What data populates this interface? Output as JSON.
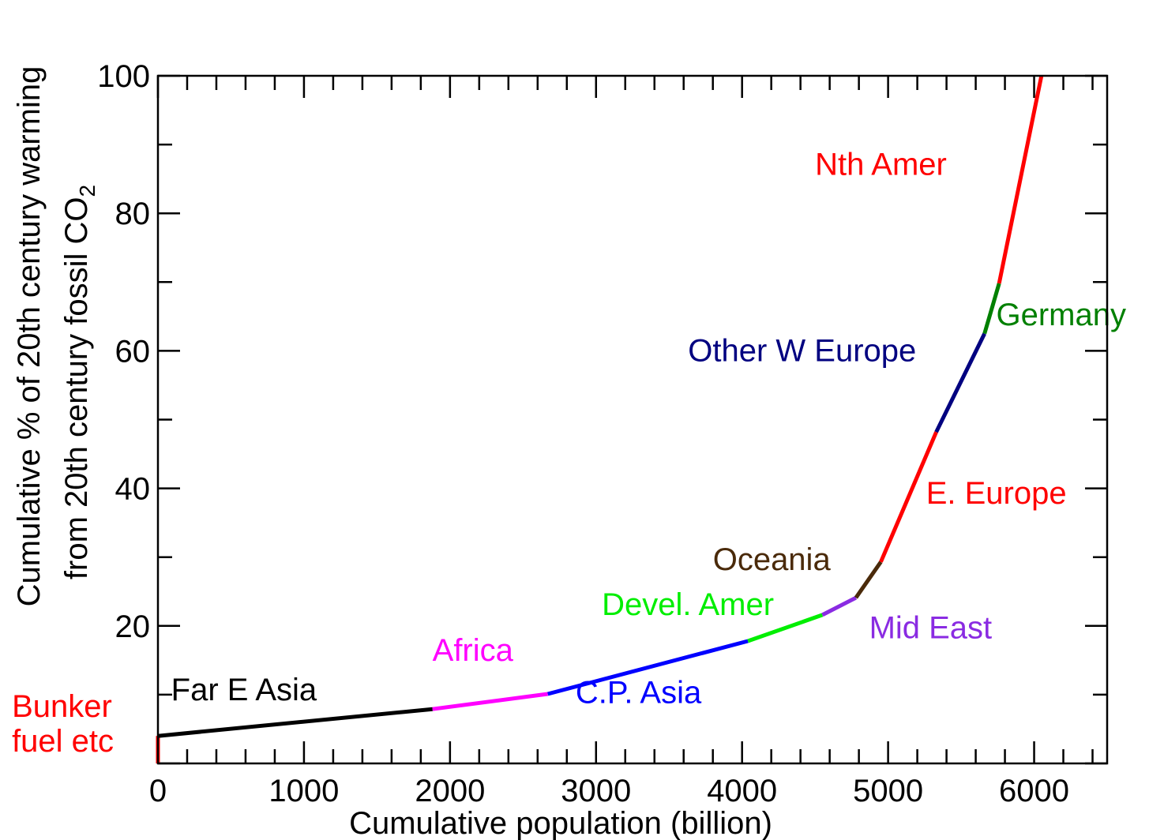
{
  "chart_data": {
    "type": "line",
    "xlabel": "Cumulative population (billion)",
    "ylabel_line1": "Cumulative % of 20th century warming",
    "ylabel_line2_main": "from 20th century fossil CO",
    "ylabel_line2_sub": "2",
    "xlim": [
      0,
      6500
    ],
    "ylim": [
      0,
      100
    ],
    "x_ticks": [
      0,
      1000,
      2000,
      3000,
      4000,
      5000,
      6000
    ],
    "y_ticks": [
      20,
      40,
      60,
      80,
      100
    ],
    "x_tick_labels": [
      "0",
      "1000",
      "2000",
      "3000",
      "4000",
      "5000",
      "6000"
    ],
    "y_tick_labels": [
      "20",
      "40",
      "60",
      "80",
      "100"
    ],
    "x_minor_step": 200,
    "y_minor_step": 10,
    "series": [
      {
        "key": "bunker",
        "color": "#ff0000",
        "points": [
          [
            0,
            0
          ],
          [
            0,
            4
          ]
        ]
      },
      {
        "key": "far-e-asia",
        "color": "#000000",
        "points": [
          [
            0,
            4
          ],
          [
            1880,
            7.9
          ]
        ]
      },
      {
        "key": "africa",
        "color": "#ff00ff",
        "points": [
          [
            1880,
            7.9
          ],
          [
            2670,
            10.1
          ]
        ]
      },
      {
        "key": "cp-asia",
        "color": "#0000ff",
        "points": [
          [
            2670,
            10.1
          ],
          [
            4040,
            17.8
          ]
        ]
      },
      {
        "key": "devel-amer",
        "color": "#00ee00",
        "points": [
          [
            4040,
            17.8
          ],
          [
            4550,
            21.6
          ]
        ]
      },
      {
        "key": "mid-east",
        "color": "#8a2be2",
        "points": [
          [
            4550,
            21.6
          ],
          [
            4780,
            24.1
          ]
        ]
      },
      {
        "key": "oceania",
        "color": "#4a2a0a",
        "points": [
          [
            4780,
            24.1
          ],
          [
            4950,
            29.3
          ]
        ]
      },
      {
        "key": "e-europe",
        "color": "#ff0000",
        "points": [
          [
            4950,
            29.3
          ],
          [
            5330,
            48.2
          ]
        ]
      },
      {
        "key": "other-w-europe",
        "color": "#000080",
        "points": [
          [
            5330,
            48.2
          ],
          [
            5660,
            62.5
          ]
        ]
      },
      {
        "key": "germany",
        "color": "#008000",
        "points": [
          [
            5660,
            62.5
          ],
          [
            5760,
            69.8
          ]
        ]
      },
      {
        "key": "nth-amer",
        "color": "#ff0000",
        "points": [
          [
            5760,
            69.8
          ],
          [
            6050,
            100
          ]
        ]
      }
    ],
    "annotations": [
      {
        "key": "bunker-line1",
        "text": "Bunker",
        "color": "#ff0000",
        "x": -1000,
        "y": 6.8
      },
      {
        "key": "bunker-line2",
        "text": "fuel etc",
        "color": "#ff0000",
        "x": -1000,
        "y": 1.7
      },
      {
        "key": "far-e-asia",
        "text": "Far E Asia",
        "color": "#000000",
        "x": 90,
        "y": 9.2
      },
      {
        "key": "africa",
        "text": "Africa",
        "color": "#ff00ff",
        "x": 1880,
        "y": 14.9
      },
      {
        "key": "cp-asia",
        "text": "C.P. Asia",
        "color": "#0000ff",
        "x": 2860,
        "y": 8.8
      },
      {
        "key": "devel-amer",
        "text": "Devel. Amer",
        "color": "#00ee00",
        "x": 3040,
        "y": 21.6
      },
      {
        "key": "oceania",
        "text": "Oceania",
        "color": "#4a2a0a",
        "x": 3800,
        "y": 28.1
      },
      {
        "key": "mid-east",
        "text": "Mid East",
        "color": "#8a2be2",
        "x": 4870,
        "y": 18.2
      },
      {
        "key": "e-europe",
        "text": "E. Europe",
        "color": "#ff0000",
        "x": 5260,
        "y": 37.8
      },
      {
        "key": "other-w-europe",
        "text": "Other W Europe",
        "color": "#000080",
        "x": 3630,
        "y": 58.5
      },
      {
        "key": "germany",
        "text": "Germany",
        "color": "#008000",
        "x": 5740,
        "y": 63.7
      },
      {
        "key": "nth-amer",
        "text": "Nth Amer",
        "color": "#ff0000",
        "x": 4500,
        "y": 85.6
      }
    ]
  }
}
